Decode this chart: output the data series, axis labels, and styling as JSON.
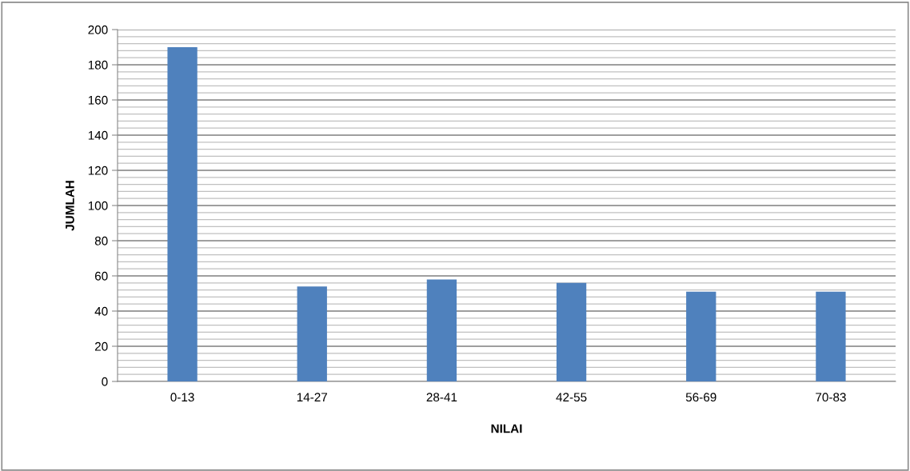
{
  "chart_data": {
    "type": "bar",
    "xlabel": "NILAI",
    "ylabel": "JUMLAH",
    "categories": [
      "0-13",
      "14-27",
      "28-41",
      "42-55",
      "56-69",
      "70-83"
    ],
    "values": [
      190,
      54,
      58,
      56,
      51,
      51
    ],
    "color": "#4f81bd",
    "ylim": [
      0,
      200
    ],
    "yticks": [
      0,
      20,
      40,
      60,
      80,
      100,
      120,
      140,
      160,
      180,
      200
    ],
    "grid": "y",
    "legend": false
  }
}
